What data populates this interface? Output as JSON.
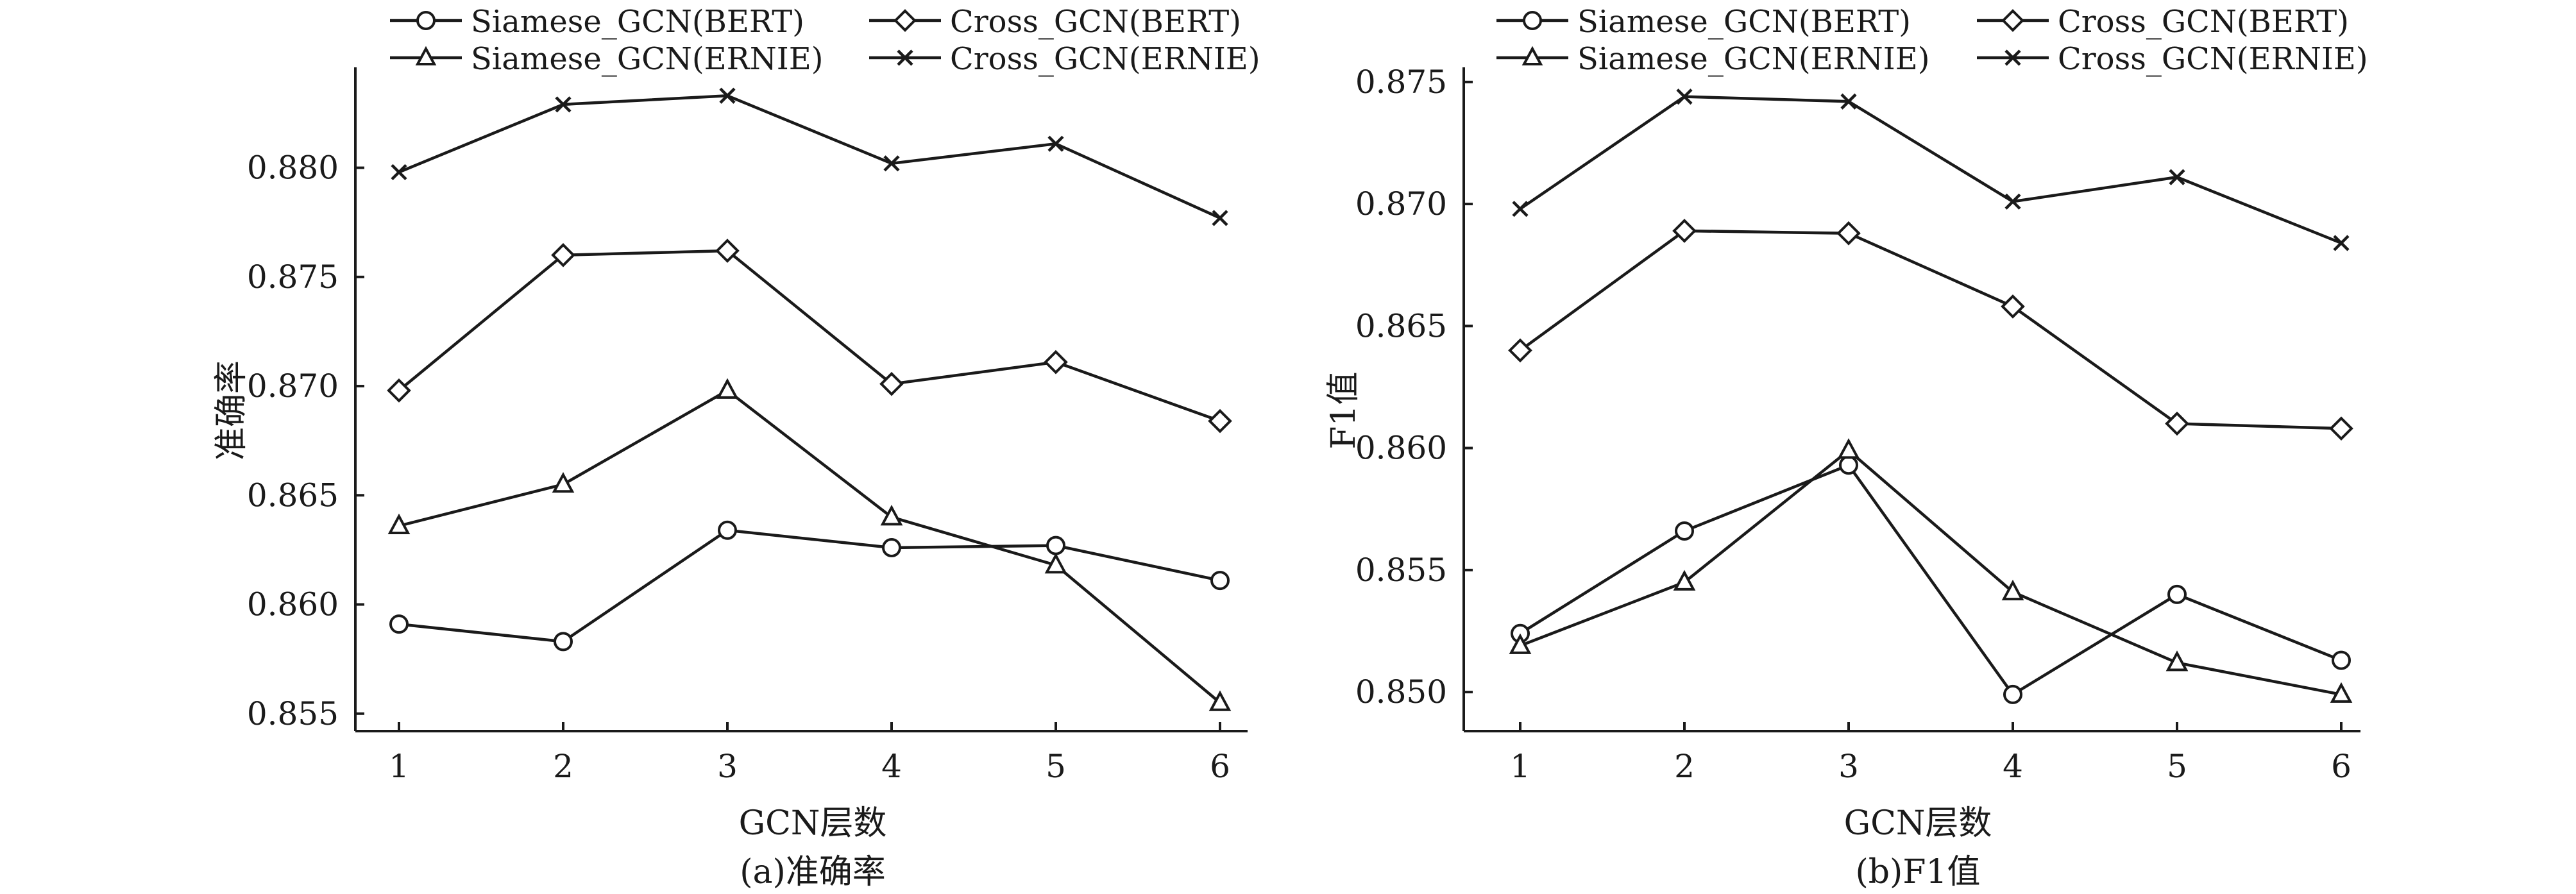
{
  "chart_data": [
    {
      "type": "line",
      "caption": "(a)准确率",
      "xlabel": "GCN层数",
      "ylabel": "准确率",
      "x": [
        1,
        2,
        3,
        4,
        5,
        6
      ],
      "xticks": [
        "1",
        "2",
        "3",
        "4",
        "5",
        "6"
      ],
      "yticks": [
        "0.855",
        "0.860",
        "0.865",
        "0.870",
        "0.875",
        "0.880"
      ],
      "ylim": [
        0.8542,
        0.8846
      ],
      "legend_position": "top",
      "series": [
        {
          "name": "Siamese_GCN(BERT)",
          "marker": "circle",
          "values": [
            0.8591,
            0.8583,
            0.8634,
            0.8626,
            0.8627,
            0.8611
          ]
        },
        {
          "name": "Cross_GCN(BERT)",
          "marker": "diamond",
          "values": [
            0.8698,
            0.876,
            0.8762,
            0.8701,
            0.8711,
            0.8684
          ]
        },
        {
          "name": "Siamese_GCN(ERNIE)",
          "marker": "triangle",
          "values": [
            0.8636,
            0.8655,
            0.8698,
            0.864,
            0.8618,
            0.8555
          ]
        },
        {
          "name": "Cross_GCN(ERNIE)",
          "marker": "cross",
          "values": [
            0.8798,
            0.8829,
            0.8833,
            0.8802,
            0.8811,
            0.8777
          ]
        }
      ]
    },
    {
      "type": "line",
      "caption": "(b)F1值",
      "xlabel": "GCN层数",
      "ylabel": "F1值",
      "x": [
        1,
        2,
        3,
        4,
        5,
        6
      ],
      "xticks": [
        "1",
        "2",
        "3",
        "4",
        "5",
        "6"
      ],
      "yticks": [
        "0.850",
        "0.855",
        "0.860",
        "0.865",
        "0.870",
        "0.875"
      ],
      "ylim": [
        0.8484,
        0.8756
      ],
      "legend_position": "top",
      "series": [
        {
          "name": "Siamese_GCN(BERT)",
          "marker": "circle",
          "values": [
            0.8524,
            0.8566,
            0.8593,
            0.8499,
            0.854,
            0.8513
          ]
        },
        {
          "name": "Cross_GCN(BERT)",
          "marker": "diamond",
          "values": [
            0.864,
            0.8689,
            0.8688,
            0.8658,
            0.861,
            0.8608
          ]
        },
        {
          "name": "Siamese_GCN(ERNIE)",
          "marker": "triangle",
          "values": [
            0.8519,
            0.8545,
            0.8599,
            0.8541,
            0.8512,
            0.8499
          ]
        },
        {
          "name": "Cross_GCN(ERNIE)",
          "marker": "cross",
          "values": [
            0.8698,
            0.8744,
            0.8742,
            0.8701,
            0.8711,
            0.8684
          ]
        }
      ]
    }
  ],
  "colors": {
    "line": "#1a1a1a",
    "background": "#ffffff"
  }
}
